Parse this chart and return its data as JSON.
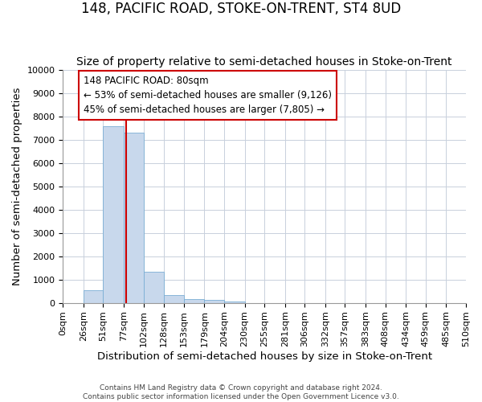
{
  "title": "148, PACIFIC ROAD, STOKE-ON-TRENT, ST4 8UD",
  "subtitle": "Size of property relative to semi-detached houses in Stoke-on-Trent",
  "xlabel": "Distribution of semi-detached houses by size in Stoke-on-Trent",
  "ylabel": "Number of semi-detached properties",
  "footnote": "Contains HM Land Registry data © Crown copyright and database right 2024.\nContains public sector information licensed under the Open Government Licence v3.0.",
  "bin_labels": [
    "0sqm",
    "26sqm",
    "51sqm",
    "77sqm",
    "102sqm",
    "128sqm",
    "153sqm",
    "179sqm",
    "204sqm",
    "230sqm",
    "255sqm",
    "281sqm",
    "306sqm",
    "332sqm",
    "357sqm",
    "383sqm",
    "408sqm",
    "434sqm",
    "459sqm",
    "485sqm",
    "510sqm"
  ],
  "bin_edges": [
    0,
    26,
    51,
    77,
    102,
    128,
    153,
    179,
    204,
    230,
    255,
    281,
    306,
    332,
    357,
    383,
    408,
    434,
    459,
    485,
    510
  ],
  "bar_heights": [
    0,
    560,
    7600,
    7300,
    1320,
    340,
    155,
    120,
    50,
    0,
    0,
    0,
    0,
    0,
    0,
    0,
    0,
    0,
    0,
    0
  ],
  "bar_color": "#c8d8ec",
  "bar_edgecolor": "#7aaed4",
  "property_size": 80,
  "redline_color": "#cc0000",
  "annotation_line1": "148 PACIFIC ROAD: 80sqm",
  "annotation_line2": "← 53% of semi-detached houses are smaller (9,126)",
  "annotation_line3": "45% of semi-detached houses are larger (7,805) →",
  "annotation_boxcolor": "#ffffff",
  "annotation_edgecolor": "#cc0000",
  "ylim": [
    0,
    10000
  ],
  "yticks": [
    0,
    1000,
    2000,
    3000,
    4000,
    5000,
    6000,
    7000,
    8000,
    9000,
    10000
  ],
  "background_color": "#ffffff",
  "grid_color": "#c8d0dc",
  "title_fontsize": 12,
  "subtitle_fontsize": 10,
  "axis_label_fontsize": 9.5,
  "tick_fontsize": 8,
  "annotation_fontsize": 8.5,
  "footnote_fontsize": 6.5
}
